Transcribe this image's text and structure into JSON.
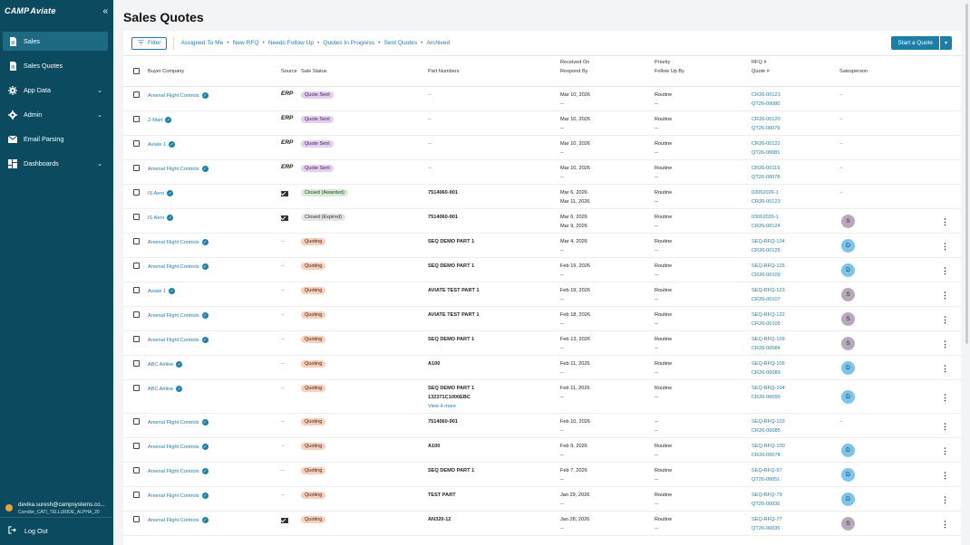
{
  "brand": {
    "logo": "CAMP",
    "logo_suffix": "Aviate"
  },
  "sidebar": {
    "items": [
      {
        "label": "Sales",
        "icon": "document-icon",
        "active": true,
        "expandable": false
      },
      {
        "label": "Sales Quotes",
        "icon": "document-icon",
        "active": false,
        "expandable": false
      },
      {
        "label": "App Data",
        "icon": "gear-icon",
        "active": false,
        "expandable": true
      },
      {
        "label": "Admin",
        "icon": "settings-icon",
        "active": false,
        "expandable": true
      },
      {
        "label": "Email Parsing",
        "icon": "mail-icon",
        "active": false,
        "expandable": false
      },
      {
        "label": "Dashboards",
        "icon": "dashboard-icon",
        "active": false,
        "expandable": true
      }
    ],
    "user_email": "devika.suresh@campsystems.co...",
    "user_tenant": "Corridor_CATI_TELLURIDE_ALPHA_20",
    "logout_label": "Log Out"
  },
  "page": {
    "title": "Sales Quotes"
  },
  "toolbar": {
    "filter_label": "Filter",
    "quick_filters": [
      "Assigned To Me",
      "New RFQ",
      "Needs Follow Up",
      "Quotes In Progress",
      "Sent Quotes",
      "Archived"
    ],
    "start_label": "Start a Quote"
  },
  "columns": {
    "buyer": "Buyer Company",
    "source": "Source",
    "status": "Sale Status",
    "parts": "Part Numbers",
    "received": "Received On",
    "respond": "Respond By",
    "priority": "Priority",
    "followup": "Follow Up By",
    "rfq": "RFQ #",
    "quote": "Quote #",
    "salesperson": "Salesperson"
  },
  "rows": [
    {
      "buyer": "Arsenal Flight Controls",
      "source": "ERP",
      "status": "Quote Sent",
      "status_type": "sent",
      "parts": [
        "--"
      ],
      "received": "Mar 10, 2026",
      "respond": "--",
      "priority": "Routine",
      "followup": "--",
      "rfq": "CR26-00121",
      "quote": "QT26-00080",
      "salesperson": "--",
      "menu": false
    },
    {
      "buyer": "Z-Mart",
      "source": "ERP",
      "status": "Quote Sent",
      "status_type": "sent",
      "parts": [
        "--"
      ],
      "received": "Mar 10, 2026",
      "respond": "--",
      "priority": "Routine",
      "followup": "--",
      "rfq": "CR26-00120",
      "quote": "QT26-00079",
      "salesperson": "--",
      "menu": false
    },
    {
      "buyer": "Aviate 1",
      "source": "ERP",
      "status": "Quote Sent",
      "status_type": "sent",
      "parts": [
        "--"
      ],
      "received": "Mar 10, 2026",
      "respond": "--",
      "priority": "Routine",
      "followup": "--",
      "rfq": "CR26-00122",
      "quote": "QT26-00081",
      "salesperson": "--",
      "menu": false
    },
    {
      "buyer": "Arsenal Flight Controls",
      "source": "ERP",
      "status": "Quote Sent",
      "status_type": "sent",
      "parts": [
        "--"
      ],
      "received": "Mar 10, 2026",
      "respond": "--",
      "priority": "Routine",
      "followup": "--",
      "rfq": "CR26-00119",
      "quote": "QT26-00078",
      "salesperson": "--",
      "menu": false
    },
    {
      "buyer": "IS Aero",
      "source": "email",
      "status": "Closed (Awarded)",
      "status_type": "awarded",
      "parts": [
        "7514060-901"
      ],
      "received": "Mar 6, 2026",
      "respond": "Mar 11, 2026",
      "priority": "Routine",
      "followup": "--",
      "rfq": "03062026-1",
      "quote": "CR26-00123",
      "salesperson": "--",
      "menu": false
    },
    {
      "buyer": "IS Aero",
      "source": "email",
      "status": "Closed (Expired)",
      "status_type": "expired",
      "parts": [
        "7514060-901"
      ],
      "received": "Mar 6, 2026",
      "respond": "Mar 9, 2026",
      "priority": "Routine",
      "followup": "--",
      "rfq": "03062026-1",
      "quote": "CR26-00124",
      "salesperson": "S",
      "menu": true
    },
    {
      "buyer": "Arsenal Flight Controls",
      "source": "--",
      "status": "Quoting",
      "status_type": "quoting",
      "parts": [
        "SEQ DEMO PART 1"
      ],
      "received": "Mar 4, 2026",
      "respond": "--",
      "priority": "Routine",
      "followup": "--",
      "rfq": "SEQ-RFQ-134",
      "quote": "CR26-00125",
      "salesperson": "D",
      "menu": true
    },
    {
      "buyer": "Arsenal Flight Controls",
      "source": "--",
      "status": "Quoting",
      "status_type": "quoting",
      "parts": [
        "SEQ DEMO PART 1"
      ],
      "received": "Feb 19, 2026",
      "respond": "--",
      "priority": "Routine",
      "followup": "--",
      "rfq": "SEQ-RFQ-125",
      "quote": "CR26-00109",
      "salesperson": "D",
      "menu": true
    },
    {
      "buyer": "Aviate 1",
      "source": "--",
      "status": "Quoting",
      "status_type": "quoting",
      "parts": [
        "AVIATE TEST PART 1"
      ],
      "received": "Feb 19, 2026",
      "respond": "--",
      "priority": "Routine",
      "followup": "--",
      "rfq": "SEQ-RFQ-123",
      "quote": "CR26-00107",
      "salesperson": "S",
      "menu": true
    },
    {
      "buyer": "Arsenal Flight Controls",
      "source": "--",
      "status": "Quoting",
      "status_type": "quoting",
      "parts": [
        "AVIATE TEST PART 1"
      ],
      "received": "Feb 18, 2026",
      "respond": "--",
      "priority": "Routine",
      "followup": "--",
      "rfq": "SEQ-RFQ-122",
      "quote": "CR26-00105",
      "salesperson": "S",
      "menu": true
    },
    {
      "buyer": "Arsenal Flight Controls",
      "source": "--",
      "status": "Quoting",
      "status_type": "quoting",
      "parts": [
        "SEQ DEMO PART 1"
      ],
      "received": "Feb 13, 2026",
      "respond": "--",
      "priority": "Routine",
      "followup": "--",
      "rfq": "SEQ-RFQ-109",
      "quote": "CR26-00084",
      "salesperson": "S",
      "menu": true
    },
    {
      "buyer": "ABC Airline",
      "source": "--",
      "status": "Quoting",
      "status_type": "quoting",
      "parts": [
        "A100"
      ],
      "received": "Feb 11, 2026",
      "respond": "--",
      "priority": "Routine",
      "followup": "--",
      "rfq": "SEQ-RFQ-105",
      "quote": "CR26-00089",
      "salesperson": "D",
      "menu": true
    },
    {
      "buyer": "ABC Airline",
      "source": "--",
      "status": "Quoting",
      "status_type": "quoting",
      "parts": [
        "SEQ DEMO PART 1",
        "132371C1000EBC"
      ],
      "view_more": "View 4 more",
      "received": "Feb 11, 2026",
      "respond": "--",
      "priority": "Routine",
      "followup": "--",
      "rfq": "SEQ-RFQ-104",
      "quote": "CR26-00090",
      "salesperson": "D",
      "menu": true
    },
    {
      "buyer": "Arsenal Flight Controls",
      "source": "--",
      "status": "Quoting",
      "status_type": "quoting",
      "parts": [
        "7514060-901"
      ],
      "received": "Feb 10, 2026",
      "respond": "--",
      "priority": "--",
      "followup": "--",
      "rfq": "SEQ-RFQ-103",
      "quote": "CR26-00085",
      "salesperson": "--",
      "menu": true
    },
    {
      "buyer": "Arsenal Flight Controls",
      "source": "--",
      "status": "Quoting",
      "status_type": "quoting",
      "parts": [
        "A100"
      ],
      "received": "Feb 9, 2026",
      "respond": "--",
      "priority": "Routine",
      "followup": "--",
      "rfq": "SEQ-RFQ-100",
      "quote": "CR26-00078",
      "salesperson": "D",
      "menu": true
    },
    {
      "buyer": "Arsenal Flight Controls",
      "source": "--",
      "status": "Quoting",
      "status_type": "quoting",
      "parts": [
        "SEQ DEMO PART 1"
      ],
      "received": "Feb 7, 2026",
      "respond": "--",
      "priority": "Routine",
      "followup": "--",
      "rfq": "SEQ-RFQ-97",
      "quote": "QT26-00051",
      "salesperson": "D",
      "menu": true
    },
    {
      "buyer": "Arsenal Flight Controls",
      "source": "--",
      "status": "Quoting",
      "status_type": "quoting",
      "parts": [
        "TEST PART"
      ],
      "received": "Jan 29, 2026",
      "respond": "--",
      "priority": "Routine",
      "followup": "--",
      "rfq": "SEQ-RFQ-79",
      "quote": "QT26-00036",
      "salesperson": "D",
      "menu": true
    },
    {
      "buyer": "Arsenal Flight Controls",
      "source": "email",
      "status": "Quoting",
      "status_type": "quoting",
      "parts": [
        "AN320-12"
      ],
      "received": "Jan 28, 2026",
      "respond": "--",
      "priority": "Routine",
      "followup": "--",
      "rfq": "SEQ-RFQ-77",
      "quote": "QT26-00035",
      "salesperson": "S",
      "menu": true
    }
  ]
}
